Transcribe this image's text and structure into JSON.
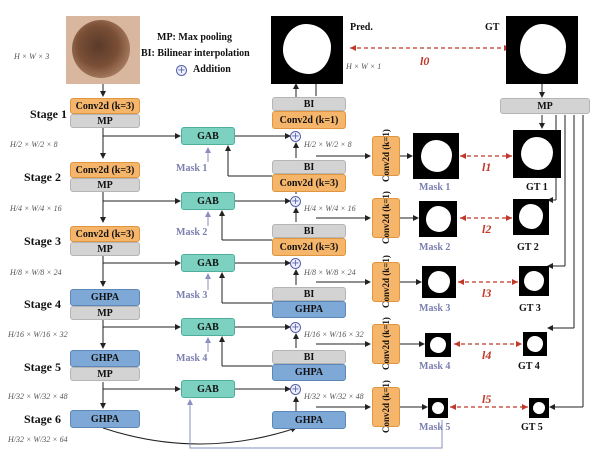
{
  "legend": {
    "mp": "MP: Max pooling",
    "bi": "BI: Bilinear interpolation",
    "addition": "Addition"
  },
  "input_dim": "H × W × 3",
  "pred": {
    "label": "Pred.",
    "dim": "H × W × 1"
  },
  "gt_label": "GT",
  "stages": [
    "Stage 1",
    "Stage 2",
    "Stage 3",
    "Stage 4",
    "Stage 5",
    "Stage 6"
  ],
  "encoder": {
    "conv1": "Conv2d (k=3)",
    "conv2": "Conv2d (k=3)",
    "conv3": "Conv2d (k=3)",
    "ghpa4": "GHPA",
    "ghpa5": "GHPA",
    "ghpa6": "GHPA",
    "mp": "MP"
  },
  "dims": {
    "d1": "H/2 × W/2 × 8",
    "d2": "H/4 × W/4 × 16",
    "d3": "H/8 × W/8 × 24",
    "d4": "H/16 × W/16 × 32",
    "d5": "H/32 × W/32 × 48",
    "d6": "H/32 × W/32 × 64"
  },
  "gab": "GAB",
  "masks": [
    "Mask 1",
    "Mask 2",
    "Mask 3",
    "Mask 4",
    "Mask 5"
  ],
  "decoder": {
    "bi": "BI",
    "conv_k1": "Conv2d (k=1)",
    "conv_k3": "Conv2d (k=3)",
    "ghpa": "GHPA"
  },
  "side_conv": "Conv2d (k=1)",
  "gt_mp": "MP",
  "gts": [
    "GT 1",
    "GT 2",
    "GT 3",
    "GT 4",
    "GT 5"
  ],
  "losses": [
    "l0",
    "l1",
    "l2",
    "l3",
    "l4",
    "l5"
  ]
}
